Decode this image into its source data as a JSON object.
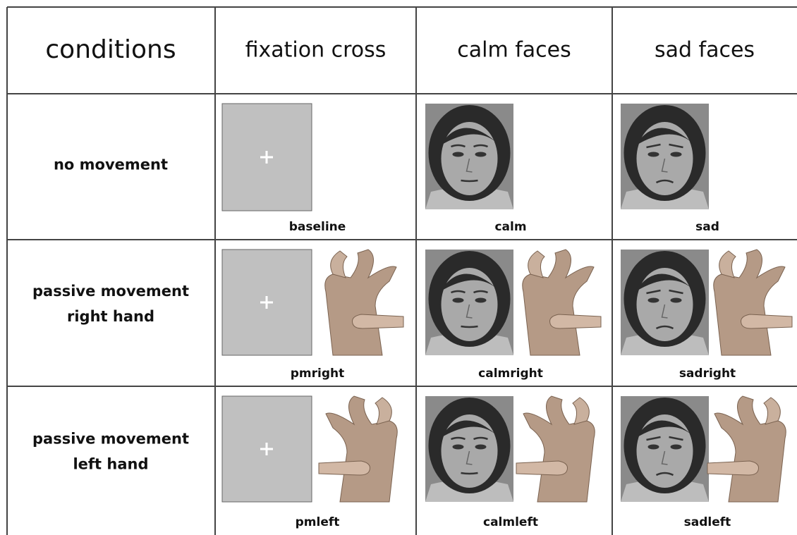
{
  "table": {
    "header": [
      "conditions",
      "fixation cross",
      "calm faces",
      "sad faces"
    ],
    "rows": [
      {
        "label": [
          "no movement"
        ],
        "cells": [
          "baseline",
          "calm",
          "sad"
        ]
      },
      {
        "label": [
          "passive movement",
          "right hand"
        ],
        "cells": [
          "pmright",
          "calmright",
          "sadright"
        ]
      },
      {
        "label": [
          "passive movement",
          "left hand"
        ],
        "cells": [
          "pmleft",
          "calmleft",
          "sadleft"
        ]
      }
    ]
  }
}
